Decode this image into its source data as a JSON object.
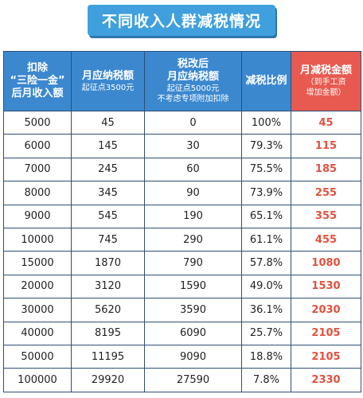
{
  "title": "不同收入人群减税情况",
  "headers": [
    {
      "lines": [
        "扣除",
        "“三险一金”",
        "后月收入额"
      ],
      "sub": []
    },
    {
      "lines": [
        "月应纳税额"
      ],
      "sub": [
        "起征点3500元"
      ]
    },
    {
      "lines": [
        "税改后",
        "月应纳税额"
      ],
      "sub": [
        "起征点5000元",
        "不考虑专项附加扣除"
      ]
    },
    {
      "lines": [
        "减税比例"
      ],
      "sub": []
    },
    {
      "lines": [
        "月减税金额"
      ],
      "sub": [
        "（到手工资",
        "增加金额）"
      ]
    }
  ],
  "rows": [
    [
      "5000",
      "45",
      "0",
      "100%",
      "45"
    ],
    [
      "6000",
      "145",
      "30",
      "79.3%",
      "115"
    ],
    [
      "7000",
      "245",
      "60",
      "75.5%",
      "185"
    ],
    [
      "8000",
      "345",
      "90",
      "73.9%",
      "255"
    ],
    [
      "9000",
      "545",
      "190",
      "65.1%",
      "355"
    ],
    [
      "10000",
      "745",
      "290",
      "61.1%",
      "455"
    ],
    [
      "15000",
      "1870",
      "790",
      "57.8%",
      "1080"
    ],
    [
      "20000",
      "3120",
      "1590",
      "49.0%",
      "1530"
    ],
    [
      "30000",
      "5620",
      "3590",
      "36.1%",
      "2030"
    ],
    [
      "40000",
      "8195",
      "6090",
      "25.7%",
      "2105"
    ],
    [
      "50000",
      "11195",
      "9090",
      "18.8%",
      "2105"
    ],
    [
      "100000",
      "29920",
      "27590",
      "7.8%",
      "2330"
    ]
  ],
  "colors": {
    "header": "#3b88cf",
    "header_highlight": "#e85a4f",
    "title": "#3fa0dd",
    "highlight_text": "#e0523f"
  }
}
